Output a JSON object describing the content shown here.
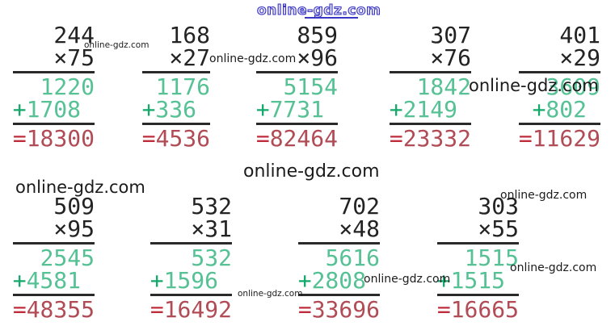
{
  "symbols": {
    "times": "×",
    "plus": "+",
    "equals": "="
  },
  "colors": {
    "digit": "#232323",
    "partial_green": "#55c194",
    "plus_green": "#12a96b",
    "result_red": "#b14b55",
    "equals_red": "#bf2d3d",
    "watermark_blue": "#3b36c3",
    "watermark_dark": "#1b1b1b",
    "rule": "#2a2a2a",
    "background": "#ffffff"
  },
  "rows": [
    {
      "problems": [
        {
          "multiplicand": "244",
          "multiplier": "75",
          "partial1": "1220",
          "partial2": "1708",
          "result": "18300"
        },
        {
          "multiplicand": "168",
          "multiplier": "27",
          "partial1": "1176",
          "partial2": "336",
          "result": "4536"
        },
        {
          "multiplicand": "859",
          "multiplier": "96",
          "partial1": "5154",
          "partial2": "7731",
          "result": "82464"
        },
        {
          "multiplicand": "307",
          "multiplier": "76",
          "partial1": "1842",
          "partial2": "2149",
          "result": "23332"
        },
        {
          "multiplicand": "401",
          "multiplier": "29",
          "partial1": "3609",
          "partial2": "802",
          "result": "11629"
        }
      ]
    },
    {
      "problems": [
        {
          "multiplicand": "509",
          "multiplier": "95",
          "partial1": "2545",
          "partial2": "4581",
          "result": "48355"
        },
        {
          "multiplicand": "532",
          "multiplier": "31",
          "partial1": "532",
          "partial2": "1596",
          "result": "16492"
        },
        {
          "multiplicand": "702",
          "multiplier": "48",
          "partial1": "5616",
          "partial2": "2808",
          "result": "33696"
        },
        {
          "multiplicand": "303",
          "multiplier": "55",
          "partial1": "1515",
          "partial2": "1515",
          "result": "16665"
        }
      ]
    }
  ],
  "watermarks": [
    {
      "text": "online-gdz.com",
      "kind": "outline"
    },
    {
      "text": "online-gdz.com",
      "kind": "tiny"
    },
    {
      "text": "online-gdz.com",
      "kind": "small"
    },
    {
      "text": "online-gdz.com",
      "kind": "large"
    },
    {
      "text": "online-gdz.com",
      "kind": "large"
    },
    {
      "text": "online-gdz.com",
      "kind": "large"
    },
    {
      "text": "online-gdz.com",
      "kind": "small"
    },
    {
      "text": "online-gdz.com",
      "kind": "small"
    },
    {
      "text": "online-gdz.com",
      "kind": "small"
    },
    {
      "text": "online-gdz.com",
      "kind": "tiny"
    }
  ]
}
